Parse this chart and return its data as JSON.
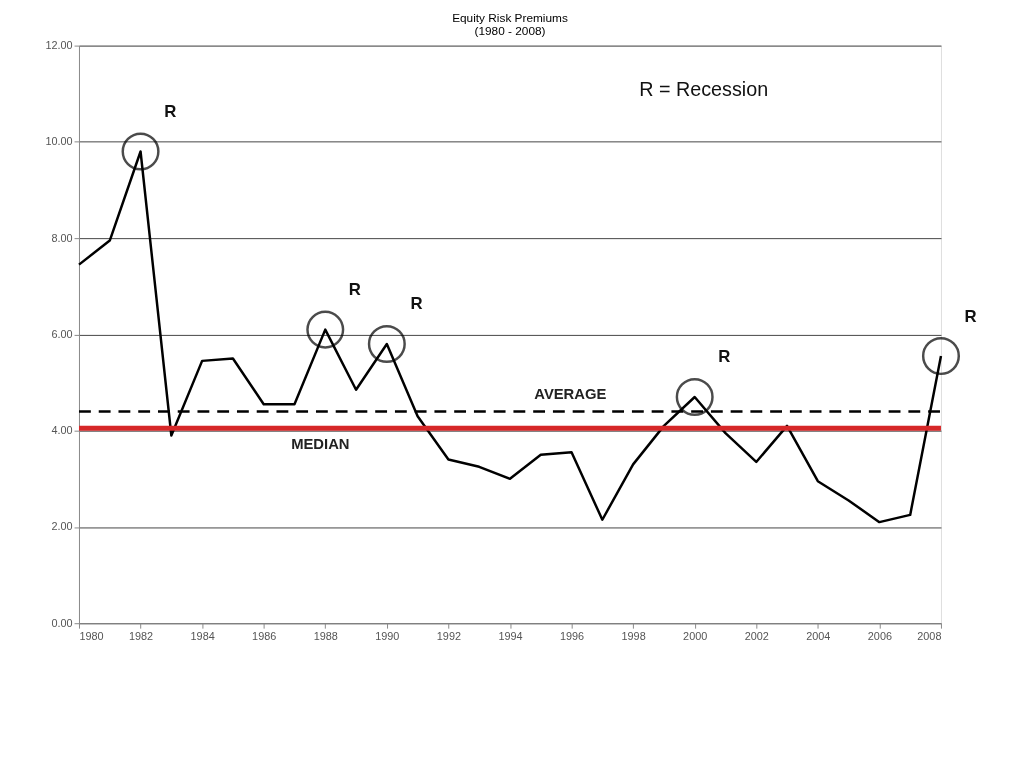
{
  "chart_data": {
    "type": "line",
    "title": "Equity Risk Premiums",
    "subtitle": "(1980 - 2008)",
    "x": [
      1980,
      1981,
      1982,
      1983,
      1984,
      1985,
      1986,
      1987,
      1988,
      1989,
      1990,
      1991,
      1992,
      1993,
      1994,
      1995,
      1996,
      1997,
      1998,
      1999,
      2000,
      2001,
      2002,
      2003,
      2004,
      2005,
      2006,
      2007,
      2008
    ],
    "series": [
      {
        "color": "#000000",
        "values": [
          7.45,
          7.95,
          9.8,
          3.9,
          5.45,
          5.5,
          4.55,
          4.55,
          6.1,
          4.85,
          5.8,
          4.3,
          3.4,
          3.25,
          3.0,
          3.5,
          3.55,
          2.15,
          3.3,
          4.1,
          4.7,
          3.95,
          3.35,
          4.1,
          2.95,
          2.55,
          2.1,
          2.25,
          5.55
        ]
      }
    ],
    "xlim": [
      1980,
      2008
    ],
    "xticks": [
      1980,
      1982,
      1984,
      1986,
      1988,
      1990,
      1992,
      1994,
      1996,
      1998,
      2000,
      2002,
      2004,
      2006,
      2008
    ],
    "ylim": [
      0,
      12
    ],
    "yticks": [
      {
        "value": 0,
        "label": "0.00"
      },
      {
        "value": 2,
        "label": "2.00"
      },
      {
        "value": 4,
        "label": "4.00"
      },
      {
        "value": 6,
        "label": "6.00"
      },
      {
        "value": 8,
        "label": "8.00"
      },
      {
        "value": 10,
        "label": "10.00"
      },
      {
        "value": 12,
        "label": "12.00"
      }
    ],
    "ref_lines": [
      {
        "axis": "y",
        "value": 4.4,
        "label": "AVERAGE",
        "color": "#000000",
        "line_style": "dashed"
      },
      {
        "axis": "y",
        "value": 4.05,
        "label": "MEDIAN",
        "color": "#d62728",
        "line_style": "solid"
      }
    ],
    "annotations": [
      "R = Recession",
      {
        "text": "R",
        "x": 1982,
        "y": 9.8
      },
      {
        "text": "R",
        "x": 1988,
        "y": 6.1
      },
      {
        "text": "R",
        "x": 1990,
        "y": 5.8
      },
      {
        "text": "R",
        "x": 2000,
        "y": 4.7
      },
      {
        "text": "R",
        "x": 2008,
        "y": 5.55
      }
    ],
    "grid": "y",
    "marker": "none",
    "line_style": "solid"
  }
}
